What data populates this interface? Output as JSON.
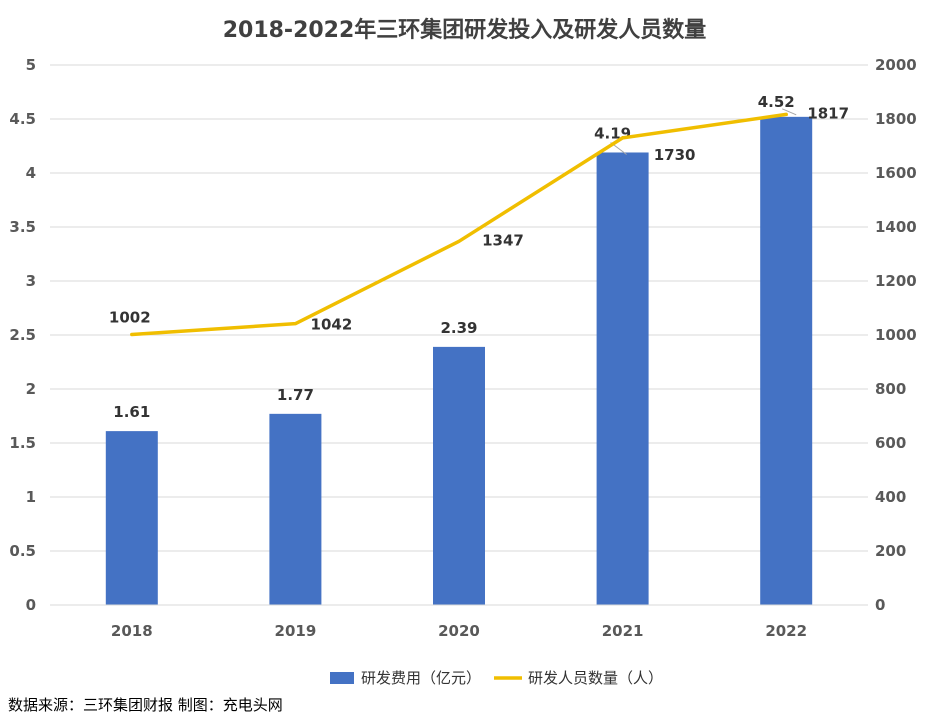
{
  "chart_data": {
    "type": "bar",
    "title": "2018-2022年三环集团研发投入及研发人员数量",
    "categories": [
      "2018",
      "2019",
      "2020",
      "2021",
      "2022"
    ],
    "series": [
      {
        "name": "研发费用（亿元）",
        "type": "bar",
        "axis": "left",
        "values": [
          1.61,
          1.77,
          2.39,
          4.19,
          4.52
        ],
        "color": "#4472C4"
      },
      {
        "name": "研发人员数量（人）",
        "type": "line",
        "axis": "right",
        "values": [
          1002,
          1042,
          1347,
          1730,
          1817
        ],
        "color": "#F0BE00"
      }
    ],
    "y_left": {
      "min": 0,
      "max": 5,
      "ticks": [
        "0",
        "0.5",
        "1",
        "1.5",
        "2",
        "2.5",
        "3",
        "3.5",
        "4",
        "4.5",
        "5"
      ]
    },
    "y_right": {
      "min": 0,
      "max": 2000,
      "ticks": [
        "0",
        "200",
        "400",
        "600",
        "800",
        "1000",
        "1200",
        "1400",
        "1600",
        "1800",
        "2000"
      ]
    },
    "grid": true,
    "legend": "bottom",
    "bar_labels": [
      "1.61",
      "1.77",
      "2.39",
      "4.19",
      "4.52"
    ],
    "line_labels": [
      "1002",
      "1042",
      "1347",
      "1730",
      "1817"
    ]
  },
  "source_note": "数据来源：三环集团财报  制图：充电头网"
}
